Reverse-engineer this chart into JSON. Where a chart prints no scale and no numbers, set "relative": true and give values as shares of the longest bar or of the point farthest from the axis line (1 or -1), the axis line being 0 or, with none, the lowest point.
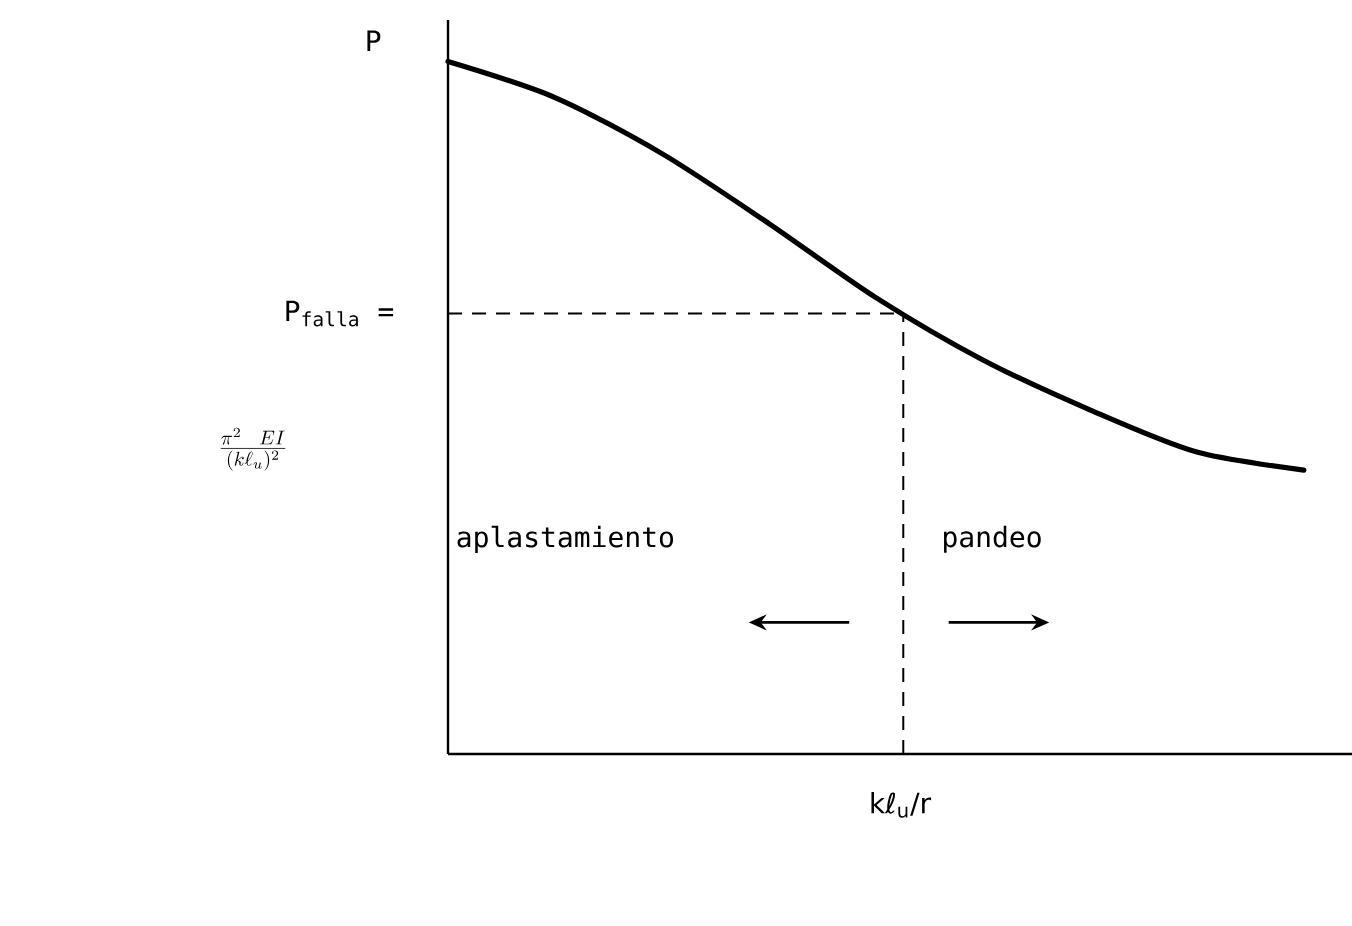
{
  "chart_data": {
    "type": "line",
    "relative": true,
    "color": "#000000",
    "categories": [
      null,
      null,
      null,
      null,
      null,
      null,
      null,
      null,
      null
    ],
    "values": [
      1.0,
      0.948,
      0.867,
      0.766,
      0.659,
      0.569,
      0.497,
      0.436,
      0.41
    ],
    "xlabel": "kℓ$_{u}$/r",
    "ref_lines": [
      {
        "axis": "y",
        "value": 0.636,
        "label": "P$_{falla}$ =",
        "line_style": "dashed",
        "color": "#000000"
      }
    ],
    "annotations": [
      "P",
      "\\frac{\\pi^{2}\\ EI}{(k\\ell_{u})^{2}}",
      "aplastamiento",
      "pandeo"
    ]
  }
}
